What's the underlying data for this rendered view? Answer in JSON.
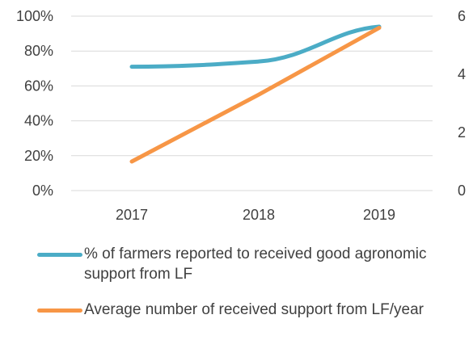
{
  "chart_data": {
    "type": "line",
    "x": [
      "2017",
      "2018",
      "2019"
    ],
    "y_left": {
      "ticks": [
        "0%",
        "20%",
        "40%",
        "60%",
        "80%",
        "100%"
      ],
      "ylim": [
        0,
        100
      ]
    },
    "y_right": {
      "ticks": [
        "0",
        "2",
        "4",
        "6"
      ],
      "ylim": [
        0,
        6
      ]
    },
    "grid": true,
    "legend_position": "bottom",
    "series": [
      {
        "name": "% of farmers reported to received good agronomic support from LF",
        "axis": "left",
        "values": [
          71,
          74,
          94
        ],
        "color": "#4bacc6"
      },
      {
        "name": "Average number of received support from LF/year",
        "axis": "right",
        "values": [
          1.0,
          3.3,
          5.6
        ],
        "color": "#f79646"
      }
    ]
  }
}
